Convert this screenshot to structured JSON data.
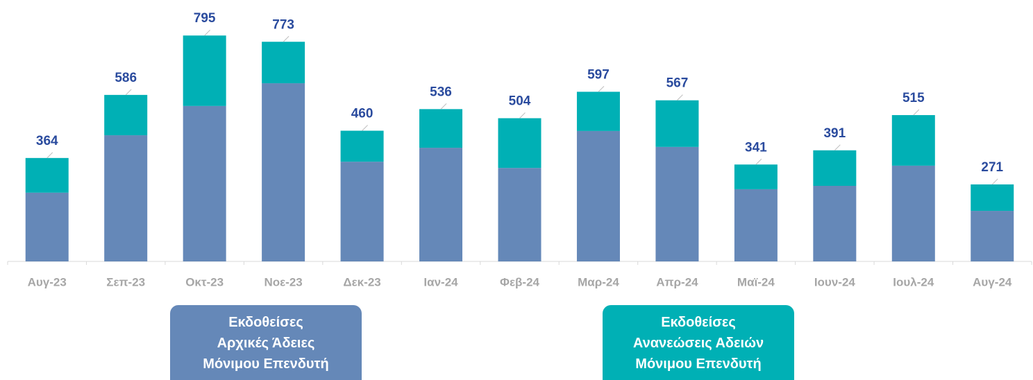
{
  "chart_data": {
    "type": "stacked_bar",
    "categories": [
      "Αυγ-23",
      "Σεπ-23",
      "Οκτ-23",
      "Νοε-23",
      "Δεκ-23",
      "Ιαν-24",
      "Φεβ-24",
      "Μαρ-24",
      "Απρ-24",
      "Μαϊ-24",
      "Ιουν-24",
      "Ιουλ-24",
      "Αυγ-24"
    ],
    "series": [
      {
        "name": "Εκδοθείσες\nΑρχικές Άδειες\nΜόνιμου Επενδυτή",
        "color": "#6588b8",
        "values": [
          242,
          444,
          547,
          627,
          351,
          400,
          329,
          459,
          403,
          254,
          266,
          337,
          178
        ]
      },
      {
        "name": "Εκδοθείσες\nΑνανεώσεις Αδειών\nΜόνιμου Επενδυτή",
        "color": "#00b0b5",
        "values": [
          122,
          142,
          248,
          146,
          109,
          136,
          175,
          138,
          164,
          87,
          125,
          178,
          93
        ]
      }
    ],
    "totals": [
      364,
      586,
      795,
      773,
      460,
      536,
      504,
      597,
      567,
      341,
      391,
      515,
      271
    ],
    "ylim": [
      0,
      920
    ]
  }
}
